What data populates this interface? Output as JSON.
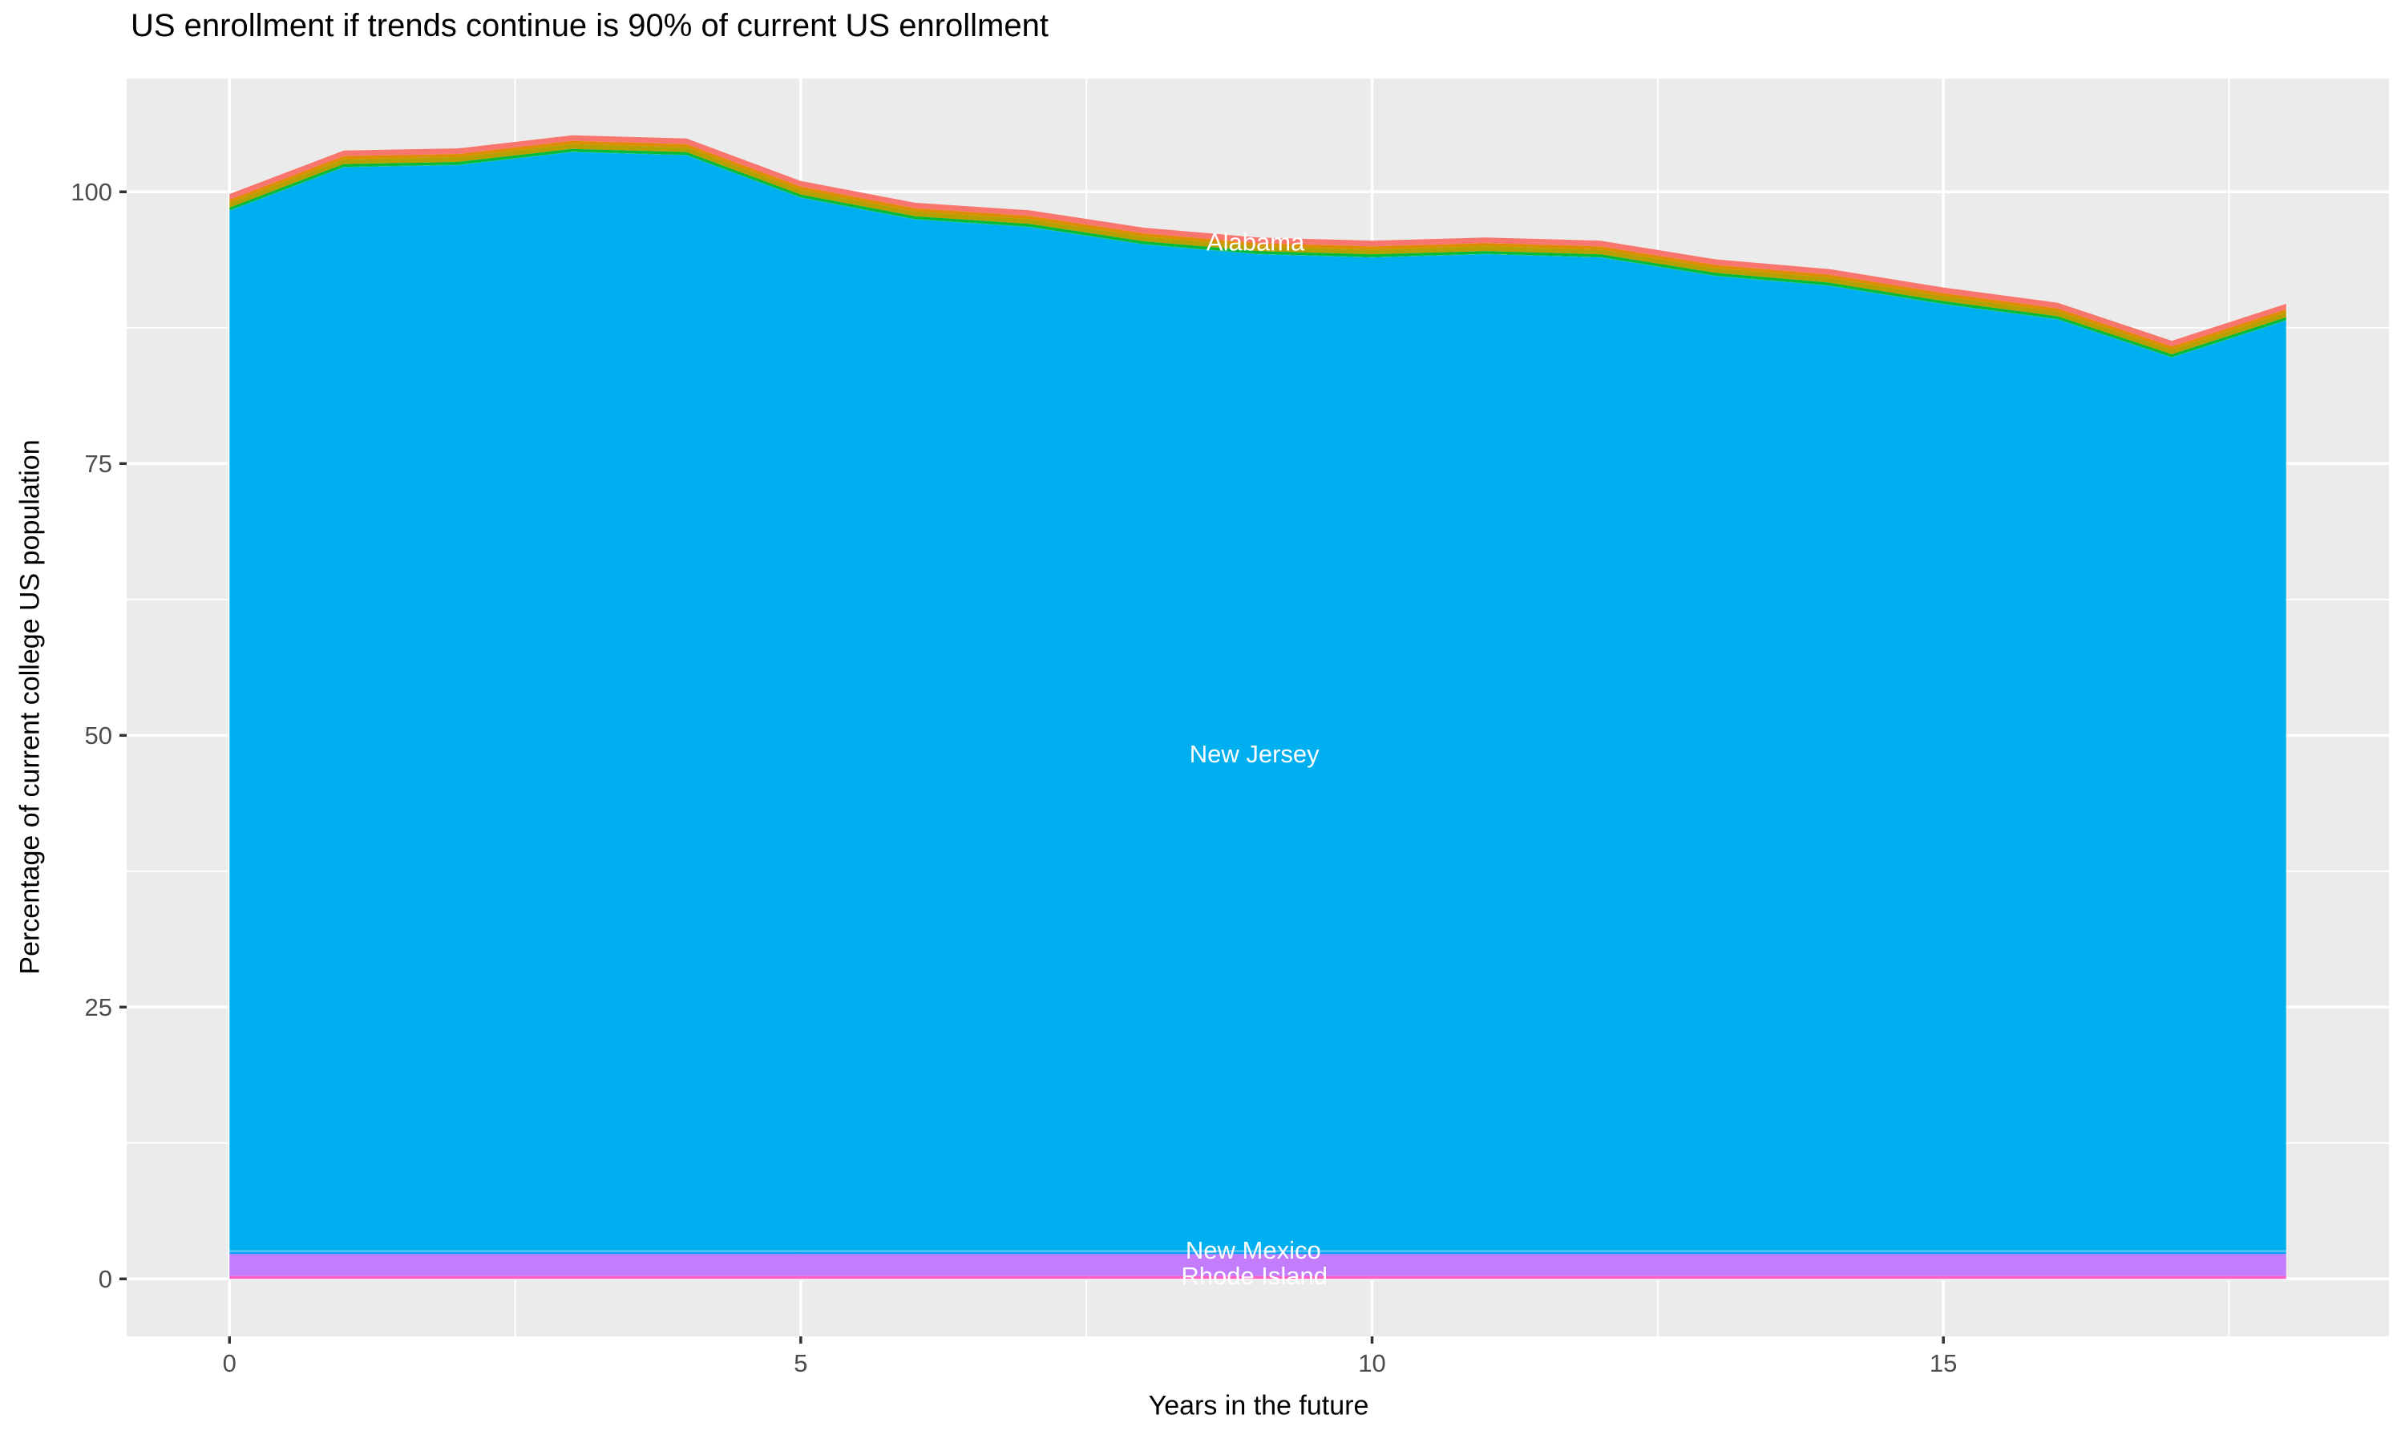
{
  "chart_data": {
    "type": "area",
    "stacked": true,
    "title": "US enrollment if trends continue is 90% of current US enrollment",
    "xlabel": "Years in the future",
    "ylabel": "Percentage of current college US population",
    "legend": "none",
    "grid": "on",
    "colors": {
      "panel_background": "#EBEBEB",
      "gridline": "#FFFFFF",
      "tick_label": "#4D4D4D",
      "tick_mark": "#333333",
      "inline_label_text": "#FFFFFF",
      "title_text": "#000000"
    },
    "x": [
      0,
      1,
      2,
      3,
      4,
      5,
      6,
      7,
      8,
      9,
      10,
      11,
      12,
      13,
      14,
      15,
      16,
      17,
      18
    ],
    "total_stack_top": [
      99.8,
      103.8,
      104.0,
      105.2,
      104.9,
      101.0,
      99.0,
      98.3,
      96.7,
      95.8,
      95.5,
      95.8,
      95.5,
      93.8,
      92.9,
      91.2,
      89.8,
      86.3,
      89.7
    ],
    "bands_top_to_bottom": [
      {
        "name": "alabama",
        "state": "Alabama",
        "color": "#F8766D",
        "mode": "thickness",
        "value": 0.52
      },
      {
        "name": "states-orange",
        "state": "other states",
        "color": "#DE8C00",
        "mode": "thickness",
        "value": 0.28
      },
      {
        "name": "states-olive",
        "state": "other states",
        "color": "#B79F00",
        "mode": "thickness",
        "value": 0.45
      },
      {
        "name": "states-green",
        "state": "other states",
        "color": "#00BA38",
        "mode": "thickness",
        "value": 0.25
      },
      {
        "name": "states-teal",
        "state": "other states",
        "color": "#00BF7D",
        "mode": "thickness",
        "value": 0.05
      },
      {
        "name": "new-jersey",
        "state": "New Jersey",
        "color": "#00AFF0",
        "mode": "down_to",
        "value": 2.62
      },
      {
        "name": "states-lightblue",
        "state": "other states",
        "color": "#55C5F2",
        "mode": "range",
        "top": 2.62,
        "bottom": 2.47
      },
      {
        "name": "states-deepblue",
        "state": "other states",
        "color": "#09A0F8",
        "mode": "range",
        "top": 2.47,
        "bottom": 2.28
      },
      {
        "name": "new-mexico",
        "state": "New Mexico",
        "color": "#C27CFC",
        "mode": "range",
        "top": 2.28,
        "bottom": 0.26
      },
      {
        "name": "rhode-island",
        "state": "Rhode Island",
        "color": "#FF61C3",
        "mode": "range",
        "top": 0.26,
        "bottom": 0
      }
    ],
    "inline_labels": [
      {
        "text": "Alabama",
        "x": 8.98,
        "y": 95.4
      },
      {
        "text": "New Jersey",
        "x": 8.97,
        "y": 48.3
      },
      {
        "text": "New Mexico",
        "x": 8.96,
        "y": 2.68
      },
      {
        "text": "Rhode Island",
        "x": 8.97,
        "y": 0.32
      }
    ],
    "x_axis": {
      "range": [
        -0.9,
        18.9
      ],
      "ticks": [
        {
          "v": 0,
          "label": "0"
        },
        {
          "v": 5,
          "label": "5"
        },
        {
          "v": 10,
          "label": "10"
        },
        {
          "v": 15,
          "label": "15"
        }
      ],
      "minor": [
        2.5,
        7.5,
        12.5,
        17.5
      ]
    },
    "y_axis": {
      "range": [
        -5.29,
        110.42
      ],
      "ticks": [
        {
          "v": 0,
          "label": "0"
        },
        {
          "v": 25,
          "label": "25"
        },
        {
          "v": 50,
          "label": "50"
        },
        {
          "v": 75,
          "label": "75"
        },
        {
          "v": 100,
          "label": "100"
        }
      ],
      "minor": [
        12.5,
        37.5,
        62.5,
        87.5
      ]
    }
  }
}
